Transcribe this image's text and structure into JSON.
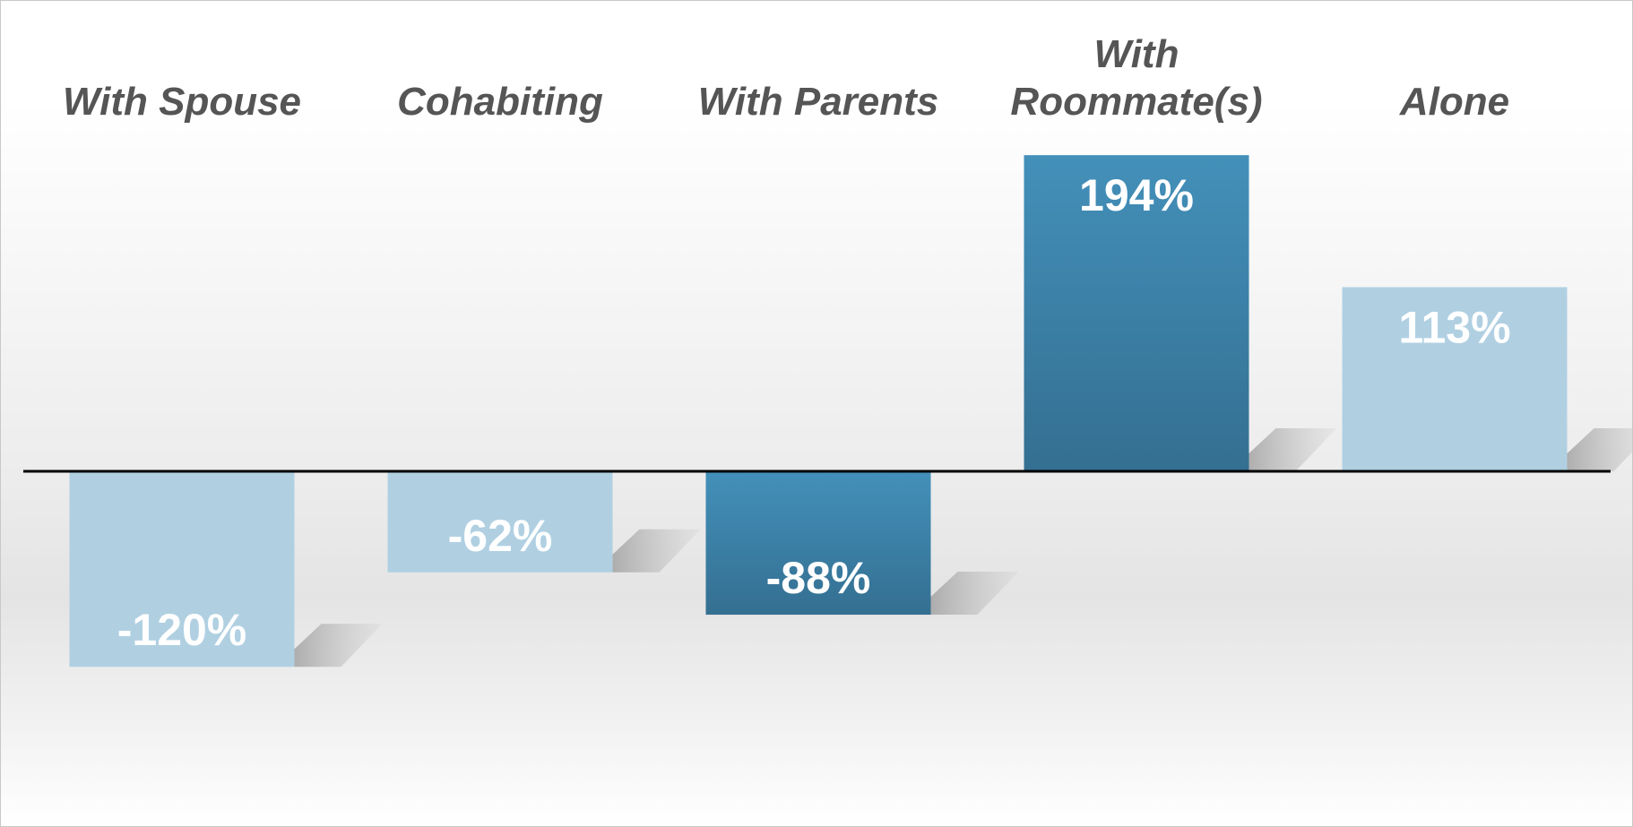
{
  "chart_data": {
    "type": "bar",
    "title": "",
    "xlabel": "",
    "ylabel": "",
    "categories": [
      "With Spouse",
      "Cohabiting",
      "With Parents",
      "With Roommate(s)",
      "Alone"
    ],
    "values": [
      -120,
      -62,
      -88,
      194,
      113
    ],
    "value_labels": [
      "-120%",
      "-62%",
      "-88%",
      "194%",
      "113%"
    ],
    "unit": "%",
    "ylim": [
      -120,
      194
    ],
    "grid": false,
    "legend": "none",
    "bar_colors": [
      "#b0d0e2",
      "#b0d0e2",
      "#3a7ca3",
      "#3a7ca3",
      "#b0d0e2"
    ],
    "label_color": "#555555",
    "value_label_color": "#ffffff",
    "axis_color": "#000000"
  }
}
